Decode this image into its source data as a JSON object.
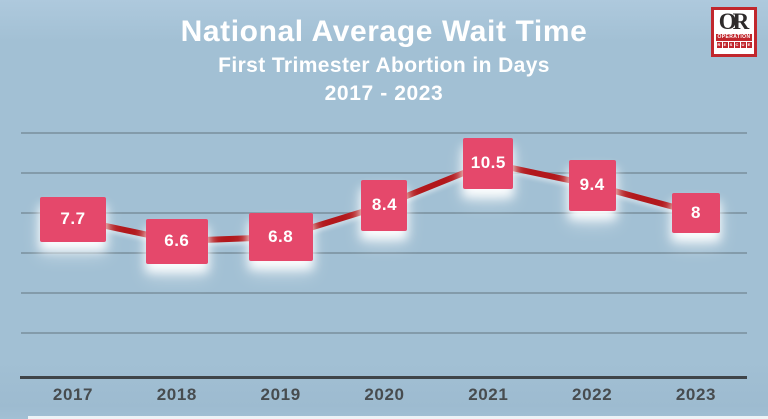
{
  "header": {
    "title": "National Average Wait Time",
    "subtitle": "First Trimester Abortion in Days",
    "range": "2017 - 2023"
  },
  "logo": {
    "monogram": "OR",
    "line1": "OPERATION",
    "line2": "RESCUE"
  },
  "colors": {
    "background": "#a2c0d4",
    "background_light": "#aec9dd",
    "background_dark": "#9dbbd0",
    "label_box": "#e5486b",
    "trend_line": "#b2181c",
    "gridline": "#6a7c86",
    "axis": "#3f4449",
    "tick_text": "#474c4f",
    "title_text": "#ffffff",
    "logo_red": "#c1272d"
  },
  "chart_data": {
    "type": "line",
    "title": "National Average Wait Time",
    "subtitle": "First Trimester Abortion in Days",
    "period": "2017 - 2023",
    "categories": [
      "2017",
      "2018",
      "2019",
      "2020",
      "2021",
      "2022",
      "2023"
    ],
    "values": [
      7.7,
      6.6,
      6.8,
      8.4,
      10.5,
      9.4,
      8
    ],
    "point_labels": [
      "7.7",
      "6.6",
      "6.8",
      "8.4",
      "10.5",
      "9.4",
      "8"
    ],
    "xlabel": "",
    "ylabel": "",
    "ylim": [
      0,
      12.75
    ],
    "y_gridline_step": 2,
    "grid": "horizontal-only",
    "y_axis_labels_visible": false,
    "legend": "none",
    "series_name": "National average wait time (days)"
  }
}
